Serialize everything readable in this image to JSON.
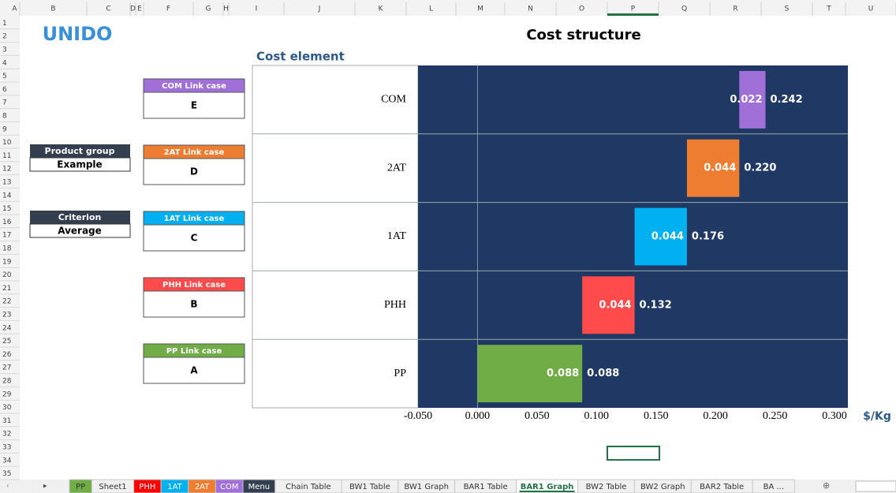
{
  "columns": [
    "A",
    "B",
    "C",
    "D",
    "E",
    "F",
    "G",
    "H",
    "I",
    "J",
    "K",
    "L",
    "M",
    "N",
    "O",
    "P",
    "Q",
    "R",
    "S",
    "T",
    "U"
  ],
  "rows": [
    1,
    2,
    3,
    4,
    5,
    6,
    7,
    8,
    9,
    10,
    11,
    12,
    13,
    14,
    15,
    16,
    17,
    18,
    19,
    20,
    21,
    22,
    23,
    24,
    25,
    26,
    27,
    28,
    29,
    30,
    31,
    32,
    33,
    34,
    35
  ],
  "logo": "UNIDO",
  "fields": [
    {
      "label": "Product group",
      "value": "Example"
    },
    {
      "label": "Criterion",
      "value": "Average"
    }
  ],
  "link_cases": [
    {
      "label": "COM Link case",
      "value": "E",
      "color": "#a070d8"
    },
    {
      "label": "2AT Link case",
      "value": "D",
      "color": "#ed7d31"
    },
    {
      "label": "1AT Link case",
      "value": "C",
      "color": "#00b0f0"
    },
    {
      "label": "PHH Link case",
      "value": "B",
      "color": "#ff4b4b"
    },
    {
      "label": "PP Link case",
      "value": "A",
      "color": "#70ad47"
    }
  ],
  "chart_data": {
    "type": "waterfall",
    "title": "Cost structure",
    "y_label": "Cost element",
    "x_label": "$/Kg",
    "categories": [
      "COM",
      "2AT",
      "1AT",
      "PHH",
      "PP"
    ],
    "values": [
      0.022,
      0.044,
      0.044,
      0.044,
      0.088
    ],
    "total_labels": [
      "0.242",
      "0.220",
      "0.176",
      "0.132",
      "0.088"
    ],
    "colors": [
      "#a070d8",
      "#ed7d31",
      "#00b0f0",
      "#ff4b4b",
      "#70ad47"
    ],
    "background": "#1f3864",
    "xlim": [
      -0.05,
      0.3
    ],
    "xticks": [
      {
        "value": -0.05,
        "label": "-0.050"
      },
      {
        "value": 0,
        "label": "0.000"
      },
      {
        "value": 0.05,
        "label": "0.050"
      },
      {
        "value": 0.1,
        "label": "0.100"
      },
      {
        "value": 0.15,
        "label": "0.150"
      },
      {
        "value": 0.2,
        "label": "0.200"
      },
      {
        "value": 0.25,
        "label": "0.250"
      },
      {
        "value": 0.3,
        "label": "0.300"
      }
    ],
    "grid": false
  },
  "tabs": [
    {
      "label": "PP",
      "color": "#70ad47"
    },
    {
      "label": "Sheet1"
    },
    {
      "label": "PHH",
      "color": "#ff0000"
    },
    {
      "label": "1AT",
      "color": "#00b0f0"
    },
    {
      "label": "2AT",
      "color": "#ed7d31"
    },
    {
      "label": "COM",
      "color": "#a070d8"
    },
    {
      "label": "Menu",
      "color": "#333f4f"
    },
    {
      "label": "Chain Table"
    },
    {
      "label": "BW1 Table"
    },
    {
      "label": "BW1 Graph"
    },
    {
      "label": "BAR1 Table"
    },
    {
      "label": "BAR1 Graph",
      "active": true
    },
    {
      "label": "BW2 Table"
    },
    {
      "label": "BW2 Graph"
    },
    {
      "label": "BAR2 Table"
    },
    {
      "label": "BA ..."
    }
  ]
}
